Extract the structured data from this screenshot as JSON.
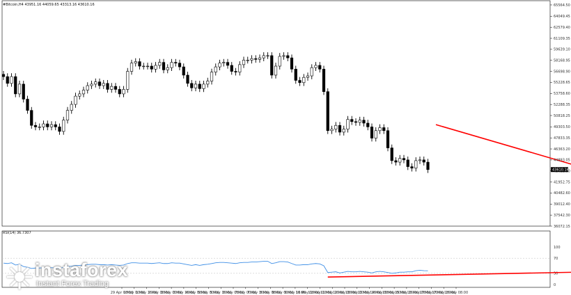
{
  "header": {
    "symbol_info": "#Bitcoin,H4  43951.16 44059.65 43313.16 43610.16",
    "rsi_info": "RSI(14) 36.7307"
  },
  "branding": {
    "brand_name": "instaforex",
    "tagline": "Instant Forex Trading"
  },
  "colors": {
    "candle": "#000000",
    "rsi_line": "#3d8ee6",
    "trendline": "#ff0000",
    "grid_dash": "#c8c8c8"
  },
  "chart_data": [
    {
      "type": "candlestick",
      "title": "#Bitcoin,H4",
      "ylim": [
        36072.15,
        65564.5
      ],
      "y_ticks": [
        "65564.50",
        "64049.45",
        "62579.40",
        "61109.35",
        "59639.10",
        "58168.95",
        "56698.90",
        "55228.65",
        "53758.60",
        "52288.35",
        "50818.25",
        "49303.50",
        "47833.35",
        "46363.20",
        "44893.05",
        "43422.90",
        "41952.75",
        "40482.60",
        "39012.40",
        "37542.30",
        "36072.15"
      ],
      "current_price": "43610.16",
      "candles_approx_close": [
        56000,
        55100,
        56000,
        53700,
        55000,
        53000,
        51500,
        49500,
        49300,
        49300,
        49700,
        49300,
        49600,
        49300,
        48700,
        50200,
        51500,
        52300,
        53400,
        53700,
        54200,
        54800,
        55000,
        55300,
        54800,
        55100,
        54300,
        54700,
        54300,
        53700,
        54300,
        56700,
        57800,
        58000,
        57400,
        57400,
        57400,
        57000,
        57500,
        57900,
        56900,
        57200,
        57900,
        57800,
        57300,
        56200,
        55100,
        54500,
        55000,
        54400,
        55000,
        55400,
        56600,
        57300,
        57800,
        57900,
        57500,
        56700,
        56600,
        57600,
        58200,
        58200,
        58400,
        58300,
        58500,
        58800,
        58800,
        56200,
        57400,
        58700,
        58800,
        58500,
        57000,
        55500,
        55200,
        55900,
        56100,
        57200,
        57500,
        57000,
        54000,
        48800,
        49000,
        49500,
        48600,
        49000,
        50300,
        50000,
        49900,
        50200,
        49800,
        49300,
        47800,
        48800,
        49200,
        48800,
        46500,
        44800,
        44600,
        45100,
        44900,
        44000,
        43800,
        44800,
        44900,
        44600,
        43610
      ],
      "trendline_price": {
        "start": [
          108,
          49600
        ],
        "end": [
          178,
          38700
        ]
      }
    },
    {
      "type": "line",
      "title": "RSI(14) 36.7307",
      "ylim": [
        0,
        100
      ],
      "y_ticks": [
        "100",
        "70",
        "30",
        "0"
      ],
      "x_ticks": [
        "29 Apr 08:00",
        "1 May 00:00",
        "1 May 16:00",
        "2 May 08:00",
        "3 May 00:00",
        "3 May 16:00",
        "4 May 08:00",
        "5 May 00:00",
        "5 May 16:00",
        "6 May 08:00",
        "7 May 00:00",
        "7 May 16:00",
        "8 May 08:00",
        "9 May 00:00",
        "9 May 16:00",
        "10 May 08:00",
        "11 May 00:00",
        "11 May 16:00",
        "12 May 08:00",
        "13 May 00:00",
        "13 May 16:00",
        "14 May 08:00",
        "15 May 00:00",
        "15 May 16:00",
        "16 May 08:00",
        "17 May 00:00",
        "17 May 16:00",
        "18 May 08:00"
      ],
      "values": [
        57,
        56,
        58,
        52,
        54,
        48,
        46,
        43,
        44,
        44,
        45,
        44,
        45,
        44,
        43,
        46,
        48,
        49,
        51,
        51,
        52,
        53,
        54,
        54,
        53,
        53,
        52,
        53,
        52,
        51,
        52,
        56,
        58,
        58,
        57,
        57,
        57,
        56,
        57,
        58,
        56,
        56,
        58,
        57,
        57,
        55,
        53,
        51,
        53,
        51,
        53,
        54,
        56,
        58,
        59,
        59,
        58,
        57,
        56,
        58,
        59,
        59,
        60,
        60,
        61,
        62,
        62,
        56,
        58,
        61,
        61,
        60,
        56,
        52,
        52,
        53,
        53,
        55,
        56,
        55,
        50,
        32,
        33,
        34,
        31,
        33,
        35,
        34,
        34,
        35,
        34,
        33,
        31,
        34,
        35,
        34,
        32,
        30,
        31,
        33,
        33,
        34,
        34,
        37,
        38,
        37,
        36.7307
      ],
      "trendline_rsi": {
        "start": [
          81,
          20
        ],
        "end": [
          177,
          40
        ]
      }
    }
  ]
}
